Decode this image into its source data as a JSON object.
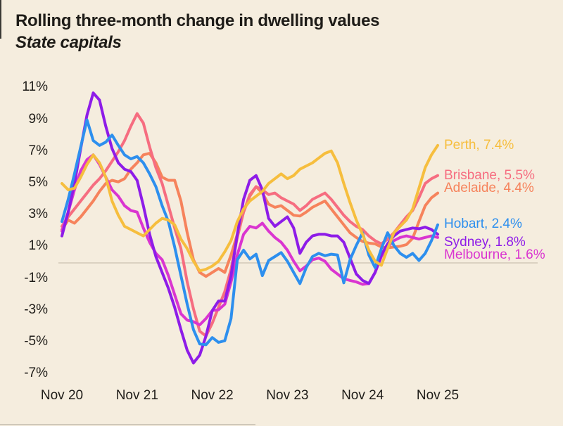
{
  "title": "Rolling three-month change in dwelling values",
  "subtitle": "State capitals",
  "colors": {
    "background": "#F5EDDE",
    "text": "#1E1C18",
    "zero_gridline": "#DBD2C2"
  },
  "chart_data": {
    "type": "line",
    "title": "Rolling three-month change in dwelling values",
    "subtitle": "State capitals",
    "x_axis": {
      "tick_labels": [
        "Nov 20",
        "Nov 21",
        "Nov 22",
        "Nov 23",
        "Nov 24",
        "Nov 25"
      ],
      "range_start": "Nov 2020",
      "range_end": "Nov 2025",
      "interval": "monthly"
    },
    "y_axis": {
      "unit": "%",
      "ticks": [
        {
          "value": 11,
          "label": "11%"
        },
        {
          "value": 9,
          "label": "9%"
        },
        {
          "value": 7,
          "label": "7%"
        },
        {
          "value": 5,
          "label": "5%"
        },
        {
          "value": 3,
          "label": "3%"
        },
        {
          "value": 1,
          "label": "1%"
        },
        {
          "value": -1,
          "label": "-1%"
        },
        {
          "value": -3,
          "label": "-3%"
        },
        {
          "value": -5,
          "label": "-5%"
        },
        {
          "value": -7,
          "label": "-7%"
        }
      ],
      "zero_line": true
    },
    "layout": {
      "grid": "zero-line-only",
      "legend": "end-of-line-labels-right"
    },
    "draw_order": [
      "Adelaide",
      "Brisbane",
      "Melbourne",
      "Sydney",
      "Hobart",
      "Perth"
    ],
    "series": [
      {
        "name": "Perth",
        "end_label": "Perth, 7.4%",
        "final_value": 7.4,
        "color": "#F6BE3E",
        "values": [
          5.0,
          4.6,
          4.7,
          5.4,
          6.2,
          6.8,
          6.3,
          5.4,
          3.9,
          3.0,
          2.3,
          2.1,
          1.9,
          1.7,
          2.1,
          2.5,
          2.8,
          2.7,
          2.4,
          1.5,
          0.9,
          0.1,
          -0.5,
          -0.4,
          -0.2,
          0.1,
          0.7,
          1.4,
          2.6,
          3.4,
          3.9,
          4.2,
          4.5,
          5.0,
          5.3,
          5.6,
          5.3,
          5.5,
          5.9,
          6.1,
          6.3,
          6.6,
          6.9,
          7.05,
          6.3,
          5.0,
          3.8,
          2.7,
          1.8,
          0.8,
          0.1,
          -0.15,
          0.9,
          1.9,
          2.3,
          2.7,
          3.4,
          4.7,
          6.0,
          6.8,
          7.4
        ]
      },
      {
        "name": "Brisbane",
        "end_label": "Brisbane, 5.5%",
        "final_value": 5.5,
        "color": "#F66D80",
        "values": [
          2.3,
          2.9,
          3.4,
          3.9,
          4.4,
          4.9,
          5.3,
          5.8,
          6.4,
          7.0,
          7.7,
          8.6,
          9.4,
          8.8,
          7.3,
          6.0,
          5.0,
          3.6,
          2.2,
          0.9,
          -1.2,
          -2.9,
          -4.3,
          -4.6,
          -3.8,
          -2.8,
          -1.8,
          -0.4,
          1.6,
          3.2,
          4.3,
          4.8,
          4.6,
          4.3,
          4.4,
          4.1,
          3.9,
          3.7,
          3.3,
          3.6,
          4.0,
          4.2,
          4.4,
          4.0,
          3.5,
          3.0,
          2.6,
          2.3,
          2.1,
          1.7,
          1.4,
          1.2,
          1.5,
          1.9,
          2.4,
          2.9,
          3.3,
          4.1,
          5.0,
          5.3,
          5.5
        ]
      },
      {
        "name": "Adelaide",
        "end_label": "Adelaide, 4.4%",
        "final_value": 4.4,
        "color": "#F6835C",
        "values": [
          2.1,
          2.7,
          2.5,
          2.9,
          3.4,
          3.9,
          4.5,
          5.0,
          5.2,
          5.1,
          5.3,
          5.9,
          6.3,
          6.8,
          6.9,
          6.3,
          5.4,
          5.2,
          5.2,
          3.9,
          1.9,
          0.2,
          -0.6,
          -0.85,
          -0.6,
          -0.35,
          -0.6,
          0.5,
          1.8,
          3.2,
          4.2,
          4.8,
          4.4,
          3.7,
          3.5,
          3.6,
          3.3,
          3.0,
          2.95,
          3.2,
          3.5,
          3.7,
          3.9,
          3.4,
          2.9,
          2.4,
          1.9,
          1.6,
          1.35,
          1.25,
          1.2,
          1.0,
          0.95,
          1.0,
          1.05,
          1.15,
          1.55,
          2.6,
          3.6,
          4.1,
          4.4
        ]
      },
      {
        "name": "Hobart",
        "end_label": "Hobart, 2.4%",
        "final_value": 2.4,
        "color": "#2D8FEE",
        "values": [
          2.6,
          4.0,
          5.6,
          7.3,
          9.0,
          7.7,
          7.4,
          7.6,
          8.05,
          7.4,
          6.8,
          6.55,
          6.7,
          6.3,
          5.6,
          4.8,
          3.6,
          2.6,
          1.0,
          -0.8,
          -2.6,
          -4.2,
          -5.1,
          -5.15,
          -4.7,
          -5.0,
          -4.9,
          -3.5,
          0.2,
          0.8,
          0.25,
          0.55,
          -0.8,
          0.15,
          0.4,
          0.65,
          0.1,
          -0.6,
          -1.3,
          -0.3,
          0.4,
          0.6,
          0.45,
          0.55,
          0.5,
          -1.25,
          0.2,
          1.1,
          1.9,
          0.5,
          -0.3,
          0.9,
          1.9,
          1.1,
          0.6,
          0.35,
          0.6,
          0.15,
          0.6,
          1.4,
          2.4
        ]
      },
      {
        "name": "Sydney",
        "end_label": "Sydney, 1.8%",
        "final_value": 1.8,
        "color": "#8E1CE8",
        "values": [
          1.7,
          3.2,
          5.0,
          7.2,
          9.3,
          10.7,
          10.25,
          8.6,
          7.2,
          6.3,
          5.9,
          5.75,
          5.2,
          3.6,
          1.8,
          0.4,
          -0.6,
          -1.6,
          -2.8,
          -4.2,
          -5.5,
          -6.3,
          -5.8,
          -4.6,
          -3.0,
          -2.4,
          -2.4,
          -0.8,
          1.8,
          4.0,
          5.2,
          5.5,
          4.6,
          2.8,
          2.3,
          2.6,
          2.9,
          2.2,
          0.6,
          1.3,
          1.7,
          1.8,
          1.8,
          1.7,
          1.7,
          1.3,
          0.3,
          -0.7,
          -1.1,
          -1.3,
          -0.6,
          0.5,
          1.2,
          1.7,
          2.0,
          2.1,
          2.2,
          2.15,
          2.25,
          2.1,
          1.8
        ]
      },
      {
        "name": "Melbourne",
        "end_label": "Melbourne, 1.6%",
        "final_value": 1.6,
        "color": "#DA35D0",
        "values": [
          2.0,
          3.2,
          4.6,
          5.8,
          6.5,
          6.8,
          6.2,
          5.4,
          4.6,
          4.2,
          3.6,
          3.3,
          3.2,
          2.2,
          1.3,
          0.6,
          0.2,
          -0.8,
          -2.0,
          -3.2,
          -3.6,
          -3.7,
          -3.9,
          -3.5,
          -3.0,
          -2.95,
          -2.6,
          -1.2,
          0.5,
          1.8,
          2.3,
          2.2,
          2.5,
          2.0,
          1.6,
          1.3,
          0.8,
          0.1,
          -0.5,
          -0.2,
          0.2,
          0.3,
          0.1,
          -0.4,
          -0.7,
          -1.0,
          -1.1,
          -1.2,
          -1.35,
          -1.3,
          -0.6,
          0.4,
          1.0,
          1.4,
          1.6,
          1.7,
          1.6,
          1.5,
          1.6,
          1.7,
          1.6
        ]
      }
    ]
  }
}
